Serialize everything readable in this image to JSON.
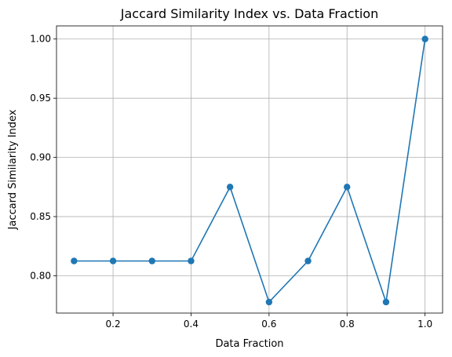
{
  "chart_data": {
    "type": "line",
    "title": "Jaccard Similarity Index vs. Data Fraction",
    "xlabel": "Data Fraction",
    "ylabel": "Jaccard Similarity Index",
    "xlim": [
      0.055,
      1.045
    ],
    "ylim": [
      0.7685,
      1.0111
    ],
    "xticks": [
      0.2,
      0.4,
      0.6,
      0.8,
      1.0
    ],
    "xtick_labels": [
      "0.2",
      "0.4",
      "0.6",
      "0.8",
      "1.0"
    ],
    "yticks": [
      0.8,
      0.85,
      0.9,
      0.95,
      1.0
    ],
    "ytick_labels": [
      "0.80",
      "0.85",
      "0.90",
      "0.95",
      "1.00"
    ],
    "grid": true,
    "series": [
      {
        "x": [
          0.1,
          0.2,
          0.3,
          0.4,
          0.5,
          0.6,
          0.7,
          0.8,
          0.9,
          1.0
        ],
        "y": [
          0.8125,
          0.8125,
          0.8125,
          0.8125,
          0.875,
          0.7778,
          0.8125,
          0.875,
          0.7778,
          1.0
        ],
        "color": "#1f77b4",
        "marker": "circle"
      }
    ]
  }
}
